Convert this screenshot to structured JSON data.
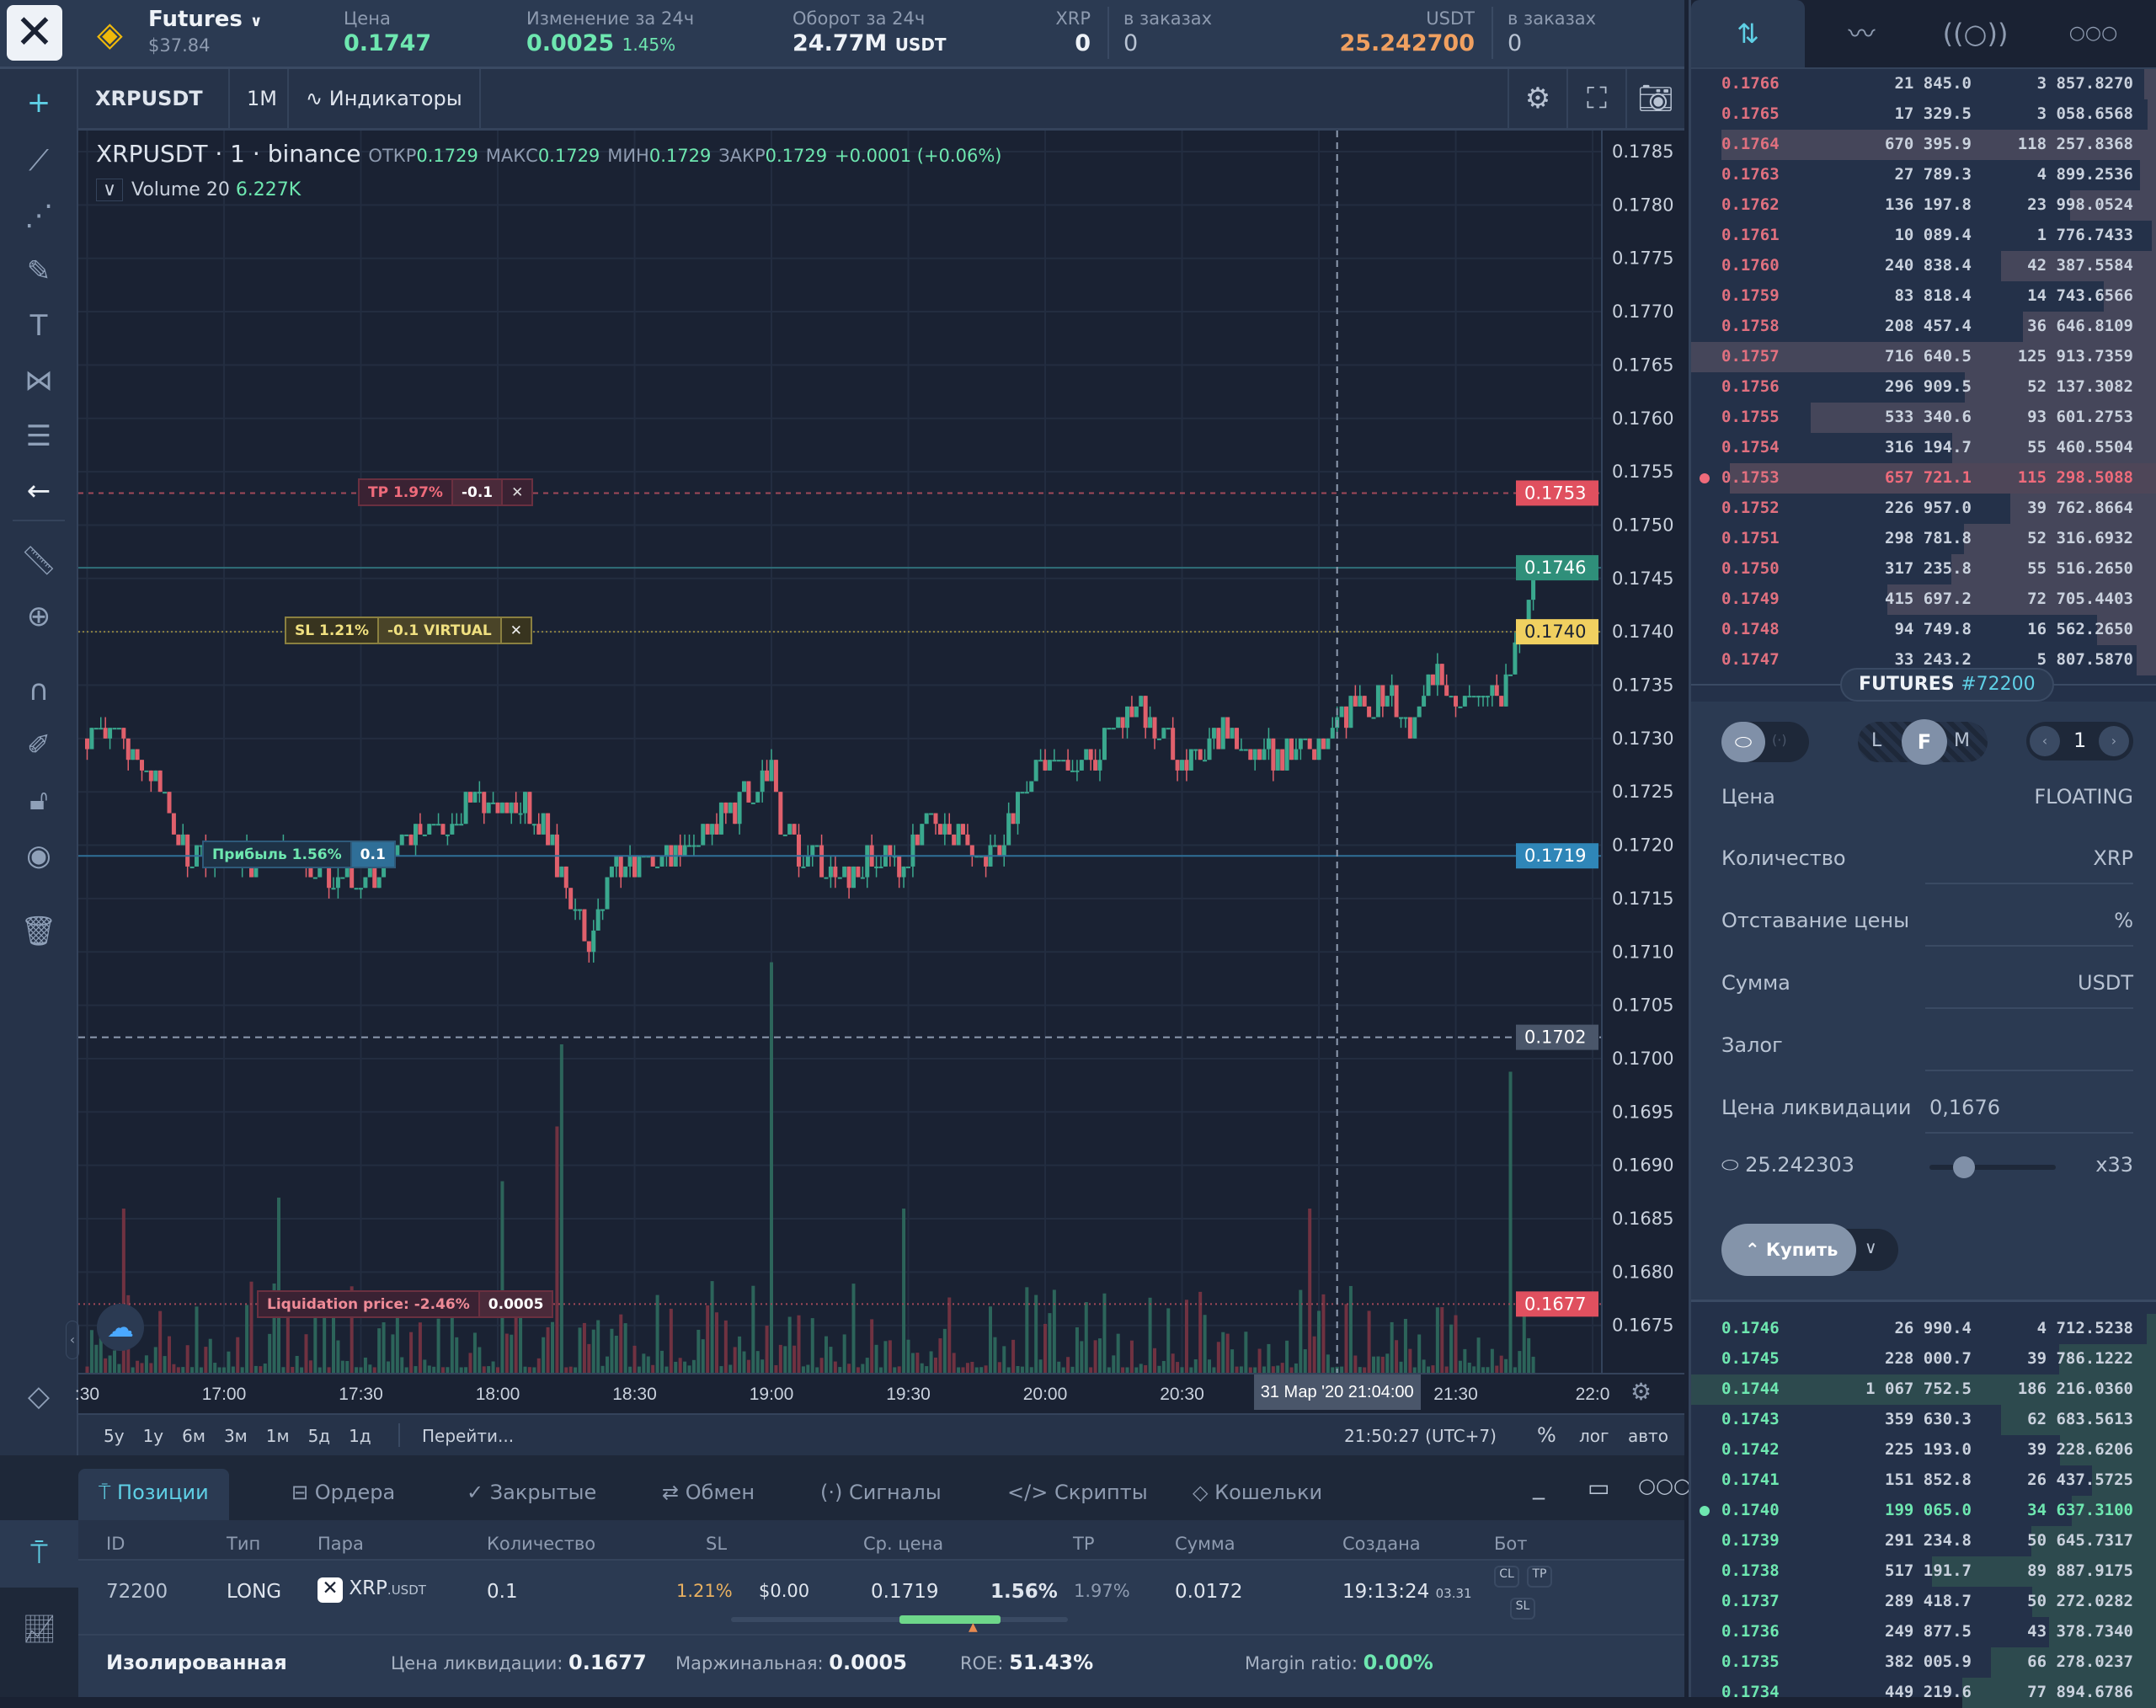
{
  "header": {
    "market": "Futures",
    "balance": "$37.84",
    "price_label": "Цена",
    "price": "0.1747",
    "change_label": "Изменение за 24ч",
    "change": "0.0025",
    "change_pct": "1.45%",
    "turnover_label": "Оборот за 24ч",
    "turnover": "24.77M",
    "turnover_cur": "USDT",
    "xrp_label": "XRP",
    "xrp": "0",
    "xrp_orders_label": "в заказах",
    "xrp_orders": "0",
    "usdt_label": "USDT",
    "usdt": "25.242700",
    "usdt_orders_label": "в заказах",
    "usdt_orders": "0"
  },
  "chart_toolbar": {
    "symbol": "XRPUSDT",
    "interval": "1M",
    "indicators": "Индикаторы"
  },
  "legend": {
    "symbol": "XRPUSDT",
    "interval": "1",
    "exchange": "binance",
    "o_label": "ОТКР",
    "o": "0.1729",
    "h_label": "МАКС",
    "h": "0.1729",
    "l_label": "МИН",
    "l": "0.1729",
    "c_label": "ЗАКР",
    "c": "0.1729",
    "chg": "+0.0001 (+0.06%)",
    "volume_label": "Volume 20",
    "volume": "6.227K"
  },
  "orders": {
    "tp": {
      "label": "TP 1.97%",
      "qty": "-0.1",
      "price": 0.1753
    },
    "sl": {
      "label": "SL 1.21%",
      "qty": "-0.1 VIRTUAL",
      "price": 0.174
    },
    "profit": {
      "label": "Прибыль 1.56%",
      "qty": "0.1",
      "price": 0.1719
    },
    "liq": {
      "label": "Liquidation price: -2.46%",
      "qty": "0.0005",
      "price": 0.1677
    }
  },
  "price_tags": [
    {
      "text": "0.1753",
      "price": 0.1753,
      "bg": "#e0505f",
      "fg": "#ffffff"
    },
    {
      "text": "0.1746",
      "price": 0.1746,
      "bg": "#2f8f7a",
      "fg": "#ffffff"
    },
    {
      "text": "0.1740",
      "price": 0.174,
      "bg": "#f0d060",
      "fg": "#1a2233"
    },
    {
      "text": "0.1719",
      "price": 0.1719,
      "bg": "#2f86b8",
      "fg": "#ffffff"
    },
    {
      "text": "0.1702",
      "price": 0.1702,
      "bg": "#4a566a",
      "fg": "#ffffff"
    },
    {
      "text": "0.1677",
      "price": 0.1677,
      "bg": "#e0505f",
      "fg": "#ffffff"
    }
  ],
  "crosshair": {
    "time_label": "31 Мар '20   21:04:00",
    "price": 0.1702
  },
  "chart_data": {
    "type": "candlestick",
    "title": "XRPUSDT 1 binance",
    "ylim": [
      0.167,
      0.1788
    ],
    "yticks": [
      "0.1785",
      "0.1780",
      "0.1775",
      "0.1770",
      "0.1765",
      "0.1760",
      "0.1755",
      "0.1750",
      "0.1745",
      "0.1740",
      "0.1735",
      "0.1730",
      "0.1725",
      "0.1720",
      "0.1715",
      "0.1710",
      "0.1705",
      "0.1700",
      "0.1695",
      "0.1690",
      "0.1685",
      "0.1680",
      "0.1675"
    ],
    "xticks": [
      ":30",
      "17:00",
      "17:30",
      "18:00",
      "18:30",
      "19:00",
      "19:30",
      "20:00",
      "20:30",
      "21:30",
      "22:0"
    ],
    "xtick_minutes": [
      0,
      30,
      60,
      90,
      120,
      150,
      180,
      210,
      240,
      300,
      330
    ],
    "close_anchors_minutes_since_1630": [
      [
        0,
        0.173
      ],
      [
        10,
        0.1729
      ],
      [
        15,
        0.1727
      ],
      [
        20,
        0.172
      ],
      [
        30,
        0.1718
      ],
      [
        40,
        0.1719
      ],
      [
        50,
        0.1718
      ],
      [
        60,
        0.1717
      ],
      [
        70,
        0.172
      ],
      [
        80,
        0.1722
      ],
      [
        85,
        0.1725
      ],
      [
        90,
        0.1722
      ],
      [
        95,
        0.1724
      ],
      [
        100,
        0.1722
      ],
      [
        105,
        0.1716
      ],
      [
        110,
        0.1711
      ],
      [
        115,
        0.1717
      ],
      [
        120,
        0.1718
      ],
      [
        130,
        0.172
      ],
      [
        140,
        0.1723
      ],
      [
        145,
        0.1725
      ],
      [
        150,
        0.1727
      ],
      [
        152,
        0.1722
      ],
      [
        155,
        0.172
      ],
      [
        160,
        0.1719
      ],
      [
        165,
        0.1716
      ],
      [
        170,
        0.1718
      ],
      [
        180,
        0.1719
      ],
      [
        185,
        0.1722
      ],
      [
        190,
        0.1721
      ],
      [
        195,
        0.1719
      ],
      [
        200,
        0.172
      ],
      [
        205,
        0.1726
      ],
      [
        210,
        0.1728
      ],
      [
        215,
        0.1727
      ],
      [
        220,
        0.1728
      ],
      [
        225,
        0.1731
      ],
      [
        230,
        0.1733
      ],
      [
        235,
        0.1731
      ],
      [
        240,
        0.1728
      ],
      [
        245,
        0.1729
      ],
      [
        250,
        0.1731
      ],
      [
        255,
        0.1729
      ],
      [
        260,
        0.1728
      ],
      [
        265,
        0.1729
      ],
      [
        270,
        0.1729
      ],
      [
        275,
        0.1733
      ],
      [
        280,
        0.1732
      ],
      [
        285,
        0.1734
      ],
      [
        290,
        0.1731
      ],
      [
        295,
        0.1736
      ],
      [
        300,
        0.1733
      ],
      [
        305,
        0.1733
      ],
      [
        310,
        0.1734
      ],
      [
        315,
        0.174
      ],
      [
        317,
        0.1746
      ]
    ],
    "volume_spikes_minutes": [
      [
        104,
        0.6
      ],
      [
        103,
        0.45
      ],
      [
        150,
        0.75
      ],
      [
        179,
        0.3
      ],
      [
        268,
        0.3
      ],
      [
        312,
        0.55
      ],
      [
        42,
        0.32
      ],
      [
        91,
        0.35
      ],
      [
        8,
        0.3
      ]
    ]
  },
  "range_bar": {
    "ranges": [
      "5y",
      "1y",
      "6м",
      "3м",
      "1м",
      "5д",
      "1д"
    ],
    "goto": "Перейти...",
    "clock": "21:50:27 (UTC+7)",
    "pct": "%",
    "log": "лог",
    "auto": "авто"
  },
  "bottom_tabs": [
    "Позиции",
    "Ордера",
    "Закрытые",
    "Обмен",
    "Сигналы",
    "Скрипты",
    "Кошельки"
  ],
  "positions": {
    "columns": [
      "ID",
      "Тип",
      "Пара",
      "Количество",
      "SL",
      "Ср. цена",
      "TP",
      "Сумма",
      "Создана",
      "Бот"
    ],
    "row": {
      "id": "72200",
      "type": "LONG",
      "pair": "XRP",
      "pair_quote": ".USDT",
      "qty": "0.1",
      "sl": "1.21%",
      "pnl_usd": "$0.00",
      "avg_price": "0.1719",
      "pnl_pct": "1.56%",
      "tp": "1.97%",
      "sum": "0.0172",
      "created_time": "19:13:24",
      "created_date": "03.31",
      "bot_cl": "CL",
      "bot_tp": "TP",
      "bot_sl": "SL",
      "progress": 0.6
    },
    "footer": {
      "mode": "Изолированная",
      "liq_label": "Цена ликвидации:",
      "liq": "0.1677",
      "margin_label": "Маржинальная:",
      "margin": "0.0005",
      "roe_label": "ROE:",
      "roe": "51.43%",
      "ratio_label": "Margin ratio:",
      "ratio": "0.00%"
    }
  },
  "orderbook": {
    "asks": [
      [
        "0.1766",
        "21 845.0",
        "3 857.8270"
      ],
      [
        "0.1765",
        "17 329.5",
        "3 058.6568"
      ],
      [
        "0.1764",
        "670 395.9",
        "118 257.8368"
      ],
      [
        "0.1763",
        "27 789.3",
        "4 899.2536"
      ],
      [
        "0.1762",
        "136 197.8",
        "23 998.0524"
      ],
      [
        "0.1761",
        "10 089.4",
        "1 776.7433"
      ],
      [
        "0.1760",
        "240 838.4",
        "42 387.5584"
      ],
      [
        "0.1759",
        "83 818.4",
        "14 743.6566"
      ],
      [
        "0.1758",
        "208 457.4",
        "36 646.8109"
      ],
      [
        "0.1757",
        "716 640.5",
        "125 913.7359"
      ],
      [
        "0.1756",
        "296 909.5",
        "52 137.3082"
      ],
      [
        "0.1755",
        "533 340.6",
        "93 601.2753"
      ],
      [
        "0.1754",
        "316 194.7",
        "55 460.5504"
      ],
      [
        "0.1753",
        "657 721.1",
        "115 298.5088"
      ],
      [
        "0.1752",
        "226 957.0",
        "39 762.8664"
      ],
      [
        "0.1751",
        "298 781.8",
        "52 316.6932"
      ],
      [
        "0.1750",
        "317 235.8",
        "55 516.2650"
      ],
      [
        "0.1749",
        "415 697.2",
        "72 705.4403"
      ],
      [
        "0.1748",
        "94 749.8",
        "16 562.2650"
      ],
      [
        "0.1747",
        "33 243.2",
        "5 807.5870"
      ]
    ],
    "ask_highlight": "0.1753",
    "bids": [
      [
        "0.1746",
        "26 990.4",
        "4 712.5238"
      ],
      [
        "0.1745",
        "228 000.7",
        "39 786.1222"
      ],
      [
        "0.1744",
        "1 067 752.5",
        "186 216.0360"
      ],
      [
        "0.1743",
        "359 630.3",
        "62 683.5613"
      ],
      [
        "0.1742",
        "225 193.0",
        "39 228.6206"
      ],
      [
        "0.1741",
        "151 852.8",
        "26 437.5725"
      ],
      [
        "0.1740",
        "199 065.0",
        "34 637.3100"
      ],
      [
        "0.1739",
        "291 234.8",
        "50 645.7317"
      ],
      [
        "0.1738",
        "517 191.7",
        "89 887.9175"
      ],
      [
        "0.1737",
        "289 418.7",
        "50 272.0282"
      ],
      [
        "0.1736",
        "249 877.5",
        "43 378.7340"
      ],
      [
        "0.1735",
        "382 005.9",
        "66 278.0237"
      ],
      [
        "0.1734",
        "449 219.6",
        "77 894.6786"
      ]
    ],
    "bid_highlight": "0.1740"
  },
  "form": {
    "title": "FUTURES",
    "id": "#72200",
    "modes": [
      "L",
      "F",
      "M"
    ],
    "active_mode": "F",
    "counter": "1",
    "price_label": "Цена",
    "price_value": "FLOATING",
    "qty_label": "Количество",
    "qty_unit": "XRP",
    "lag_label": "Отставание цены",
    "lag_unit": "%",
    "sum_label": "Сумма",
    "sum_unit": "USDT",
    "collateral_label": "Залог",
    "liq_label": "Цена ликвидации",
    "liq_value": "0,1676",
    "wallet": "25.242303",
    "leverage": "x33",
    "leverage_fraction": 0.27,
    "buy": "Купить"
  }
}
